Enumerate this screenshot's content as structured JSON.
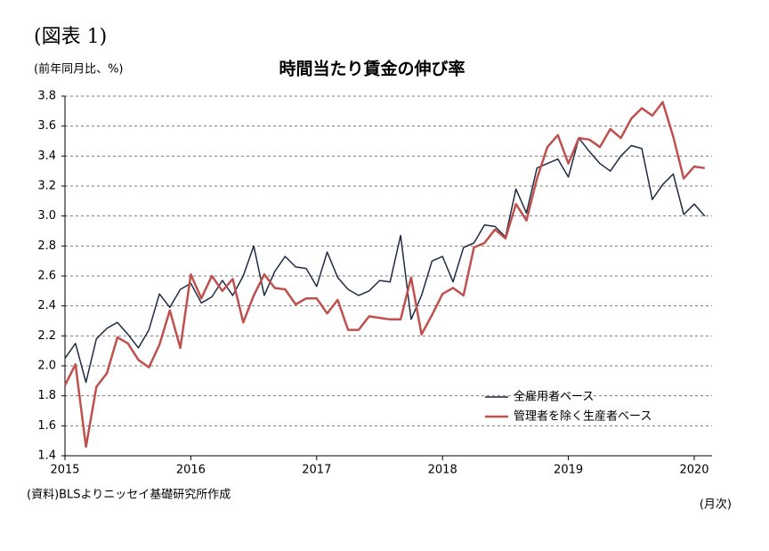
{
  "chart_data": {
    "type": "line",
    "figure_label": "(図表 1)",
    "title": "時間当たり賃金の伸び率",
    "y_axis_label": "(前年同月比、%)",
    "x_axis_label": "(月次)",
    "source": "(資料)BLSよりニッセイ基礎研究所作成",
    "categories": [
      "2015",
      null,
      null,
      null,
      null,
      null,
      null,
      null,
      null,
      null,
      null,
      null,
      "2016",
      null,
      null,
      null,
      null,
      null,
      null,
      null,
      null,
      null,
      null,
      null,
      "2017",
      null,
      null,
      null,
      null,
      null,
      null,
      null,
      null,
      null,
      null,
      null,
      "2018",
      null,
      null,
      null,
      null,
      null,
      null,
      null,
      null,
      null,
      null,
      null,
      "2019",
      null,
      null,
      null,
      null,
      null,
      null,
      null,
      null,
      null,
      null,
      null,
      "2020",
      null
    ],
    "series": [
      {
        "name": "全雇用者ベース",
        "color": "#1f2a44",
        "values": [
          2.05,
          2.15,
          1.89,
          2.18,
          2.25,
          2.29,
          2.21,
          2.12,
          2.24,
          2.48,
          2.39,
          2.51,
          2.55,
          2.42,
          2.46,
          2.57,
          2.47,
          2.6,
          2.8,
          2.47,
          2.63,
          2.73,
          2.66,
          2.65,
          2.53,
          2.76,
          2.59,
          2.51,
          2.47,
          2.5,
          2.57,
          2.56,
          2.87,
          2.31,
          2.47,
          2.7,
          2.73,
          2.56,
          2.79,
          2.82,
          2.94,
          2.93,
          2.86,
          3.18,
          3.02,
          3.32,
          3.35,
          3.38,
          3.26,
          3.52,
          3.43,
          3.35,
          3.3,
          3.4,
          3.47,
          3.45,
          3.11,
          3.21,
          3.28,
          3.01,
          3.08,
          3.0
        ]
      },
      {
        "name": "管理者を除く生産者ベース",
        "color": "#c0504d",
        "values": [
          1.87,
          2.01,
          1.46,
          1.86,
          1.95,
          2.19,
          2.15,
          2.04,
          1.99,
          2.14,
          2.37,
          2.12,
          2.61,
          2.45,
          2.6,
          2.5,
          2.58,
          2.29,
          2.47,
          2.61,
          2.52,
          2.51,
          2.41,
          2.45,
          2.45,
          2.35,
          2.44,
          2.24,
          2.24,
          2.33,
          2.32,
          2.31,
          2.31,
          2.59,
          2.21,
          2.34,
          2.48,
          2.52,
          2.47,
          2.79,
          2.82,
          2.91,
          2.85,
          3.08,
          2.97,
          3.25,
          3.46,
          3.54,
          3.35,
          3.52,
          3.51,
          3.46,
          3.58,
          3.52,
          3.65,
          3.72,
          3.67,
          3.76,
          3.53,
          3.25,
          3.33,
          3.32
        ]
      }
    ],
    "ylim": [
      1.4,
      3.8
    ],
    "yticks": [
      1.4,
      1.6,
      1.8,
      {
        "value": 2,
        "label": "2.0"
      },
      2.2,
      2.4,
      2.6,
      2.8,
      {
        "value": 3,
        "label": "3.0"
      },
      3.2,
      3.4,
      3.6,
      3.8
    ],
    "grid": true,
    "legend": "lower right"
  }
}
